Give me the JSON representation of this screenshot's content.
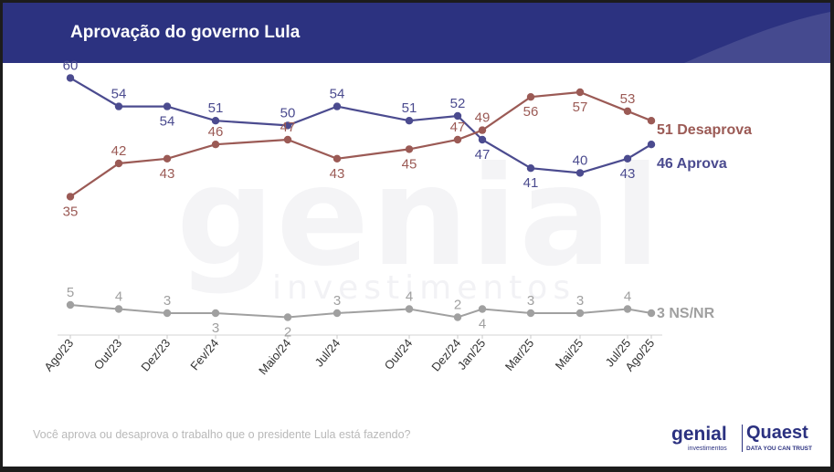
{
  "title": "Aprovação do governo Lula",
  "question": "Você aprova ou desaprova o trabalho que o presidente Lula está fazendo?",
  "watermark": {
    "main": "genial",
    "sub": "investimentos"
  },
  "logos": {
    "genial": "genial",
    "genial_sub": "investimentos",
    "quaest": "Quaest",
    "quaest_sub": "DATA YOU CAN TRUST"
  },
  "colors": {
    "header": "#2c3280",
    "aprova": "#4b4b8f",
    "desaprova": "#9b5a55",
    "nsnr": "#a0a0a0"
  },
  "chart_data": {
    "type": "line",
    "categories": [
      "Ago/23",
      "Out/23",
      "Dez/23",
      "Fev/24",
      "Maio/24",
      "Jul/24",
      "Out/24",
      "Dez/24",
      "Jan/25",
      "Mar/25",
      "Mai/25",
      "Jul/25",
      "Ago/25"
    ],
    "series": [
      {
        "name": "Aprova",
        "end_label": "46 Aprova",
        "values": [
          60,
          54,
          54,
          51,
          50,
          54,
          51,
          52,
          47,
          41,
          40,
          43,
          46
        ]
      },
      {
        "name": "Desaprova",
        "end_label": "51 Desaprova",
        "values": [
          35,
          42,
          43,
          46,
          47,
          43,
          45,
          47,
          49,
          56,
          57,
          53,
          51
        ]
      },
      {
        "name": "NS/NR",
        "end_label": "3 NS/NR",
        "values": [
          5,
          4,
          3,
          3,
          2,
          3,
          4,
          2,
          4,
          3,
          3,
          4,
          3
        ]
      }
    ]
  }
}
